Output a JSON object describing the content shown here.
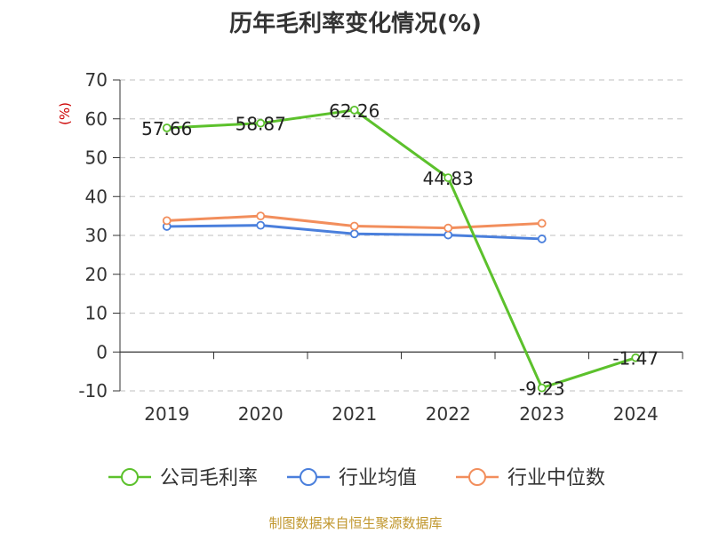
{
  "chart_data": {
    "type": "line",
    "title": "历年毛利率变化情况(%)",
    "ylabel": "(%)",
    "xlabel": "",
    "categories": [
      "2019",
      "2020",
      "2021",
      "2022",
      "2023",
      "2024"
    ],
    "ylim": [
      -10,
      70
    ],
    "yticks": [
      -10,
      0,
      10,
      20,
      30,
      40,
      50,
      60,
      70
    ],
    "grid": true,
    "legend_position": "bottom",
    "series": [
      {
        "name": "公司毛利率",
        "color": "#5cc12c",
        "values": [
          57.66,
          58.87,
          62.26,
          44.83,
          -9.23,
          -1.47
        ],
        "labels": [
          "57.66",
          "58.87",
          "62.26",
          "44.83",
          "-9.23",
          "-1.47"
        ]
      },
      {
        "name": "行业均值",
        "color": "#4a7fdc",
        "values": [
          32.3,
          32.6,
          30.4,
          30.1,
          29.1,
          null
        ]
      },
      {
        "name": "行业中位数",
        "color": "#f28e5c",
        "values": [
          33.8,
          35.0,
          32.4,
          31.9,
          33.1,
          null
        ]
      }
    ]
  },
  "footer": {
    "source": "制图数据来自恒生聚源数据库"
  }
}
